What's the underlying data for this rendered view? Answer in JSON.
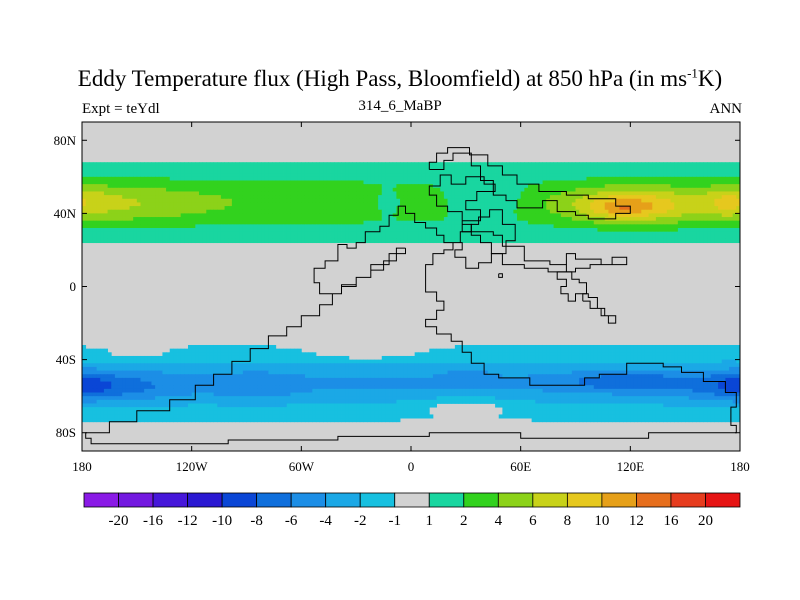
{
  "title": {
    "main": "Eddy Temperature flux (High Pass, Bloomfield) at 850 hPa (in ms",
    "sup": "-1",
    "suffix": "K)"
  },
  "left_label": "Expt = teYdl",
  "center_label": "314_6_MaBP",
  "right_label": "ANN",
  "chart_data": {
    "type": "heatmap",
    "title": "Eddy Temperature flux (High Pass, Bloomfield) at 850 hPa (in ms-1K)",
    "projection": "cylindrical equidistant",
    "xlim": [
      -180,
      180
    ],
    "ylim": [
      -90,
      90
    ],
    "x_ticks": [
      {
        "value": -180,
        "label": "180"
      },
      {
        "value": -120,
        "label": "120W"
      },
      {
        "value": -60,
        "label": "60W"
      },
      {
        "value": 0,
        "label": "0"
      },
      {
        "value": 60,
        "label": "60E"
      },
      {
        "value": 120,
        "label": "120E"
      },
      {
        "value": 180,
        "label": "180"
      }
    ],
    "y_ticks": [
      {
        "value": 80,
        "label": "80N"
      },
      {
        "value": 40,
        "label": "40N"
      },
      {
        "value": 0,
        "label": "0"
      },
      {
        "value": -40,
        "label": "40S"
      },
      {
        "value": -80,
        "label": "80S"
      }
    ],
    "colorbar": {
      "labels": [
        "-20",
        "-16",
        "-12",
        "-10",
        "-8",
        "-6",
        "-4",
        "-2",
        "-1",
        "1",
        "2",
        "4",
        "6",
        "8",
        "10",
        "12",
        "16",
        "20"
      ],
      "colors": [
        "#8a1ae6",
        "#7319e0",
        "#4617da",
        "#2a18d2",
        "#0a46d6",
        "#0f6fdc",
        "#1c8ee6",
        "#1ba8e6",
        "#17c0e0",
        "#d2d2d2",
        "#19d6a0",
        "#32d21e",
        "#8cd219",
        "#c8d219",
        "#e6c81e",
        "#e6a019",
        "#e66e1c",
        "#e63c1e",
        "#e61414"
      ]
    },
    "missing_color": "#d2d2d2",
    "band_color_index": {
      "-1": 9,
      "0": 9,
      "1": 10,
      "2": 11,
      "3": 12,
      "4": 13,
      "5": 14,
      "6": 15,
      "7": 16,
      "-2": 8,
      "-3": 7,
      "-4": 6,
      "-5": 5,
      "-6": 4,
      "-7": 3
    },
    "features": [
      {
        "lon": -157,
        "lat": 45,
        "dlon": 45,
        "dlat": 11,
        "amp": 1.2
      },
      {
        "lon": -178,
        "lat": 47,
        "dlon": 18,
        "dlat": 9,
        "amp": 0.8
      },
      {
        "lon": 122,
        "lat": 44,
        "dlon": 35,
        "dlat": 10,
        "amp": 3.0
      },
      {
        "lon": 115,
        "lat": 43,
        "dlon": 15,
        "dlat": 5,
        "amp": 1.4
      },
      {
        "lon": 40,
        "lat": 47,
        "dlon": 25,
        "dlat": 10,
        "amp": -1.6
      },
      {
        "lon": -13,
        "lat": 46,
        "dlon": 12,
        "dlat": 8,
        "amp": -1.0
      },
      {
        "lon": 172,
        "lat": 46,
        "dlon": 10,
        "dlat": 8,
        "amp": 1.0
      },
      {
        "lon": -173,
        "lat": -55,
        "dlon": 40,
        "dlat": 8,
        "amp": -1.8
      },
      {
        "lon": 118,
        "lat": -52,
        "dlon": 32,
        "dlat": 5,
        "amp": -1.8
      },
      {
        "lon": 180,
        "lat": -54,
        "dlon": 14,
        "dlat": 7,
        "amp": -1.0
      },
      {
        "lon": 30,
        "lat": -49,
        "dlon": 12,
        "dlat": 4,
        "amp": -0.8
      },
      {
        "lon": -85,
        "lat": -55,
        "dlon": 20,
        "dlat": 8,
        "amp": -0.8
      },
      {
        "lon": 30,
        "lat": -65,
        "dlon": 30,
        "dlat": 5,
        "amp": 1.2
      },
      {
        "lon": -25,
        "lat": -37,
        "dlon": 30,
        "dlat": 4,
        "amp": 0.9
      },
      {
        "lon": -150,
        "lat": -38,
        "dlon": 20,
        "dlat": 4,
        "amp": 0.7
      }
    ],
    "land_outlines": [
      [
        [
          -3,
          21
        ],
        [
          -3,
          18
        ],
        [
          -8,
          18
        ],
        [
          -8,
          14
        ],
        [
          -15,
          14
        ],
        [
          -15,
          9
        ],
        [
          -22,
          9
        ],
        [
          -22,
          5
        ],
        [
          -30,
          5
        ],
        [
          -30,
          1
        ],
        [
          -38,
          1
        ],
        [
          -38,
          -4
        ],
        [
          -43,
          -4
        ],
        [
          -43,
          -10
        ],
        [
          -50,
          -10
        ],
        [
          -50,
          -16
        ],
        [
          -60,
          -16
        ],
        [
          -60,
          -22
        ],
        [
          -68,
          -22
        ],
        [
          -68,
          -27
        ],
        [
          -78,
          -27
        ],
        [
          -78,
          -34
        ],
        [
          -88,
          -34
        ],
        [
          -88,
          -41
        ],
        [
          -98,
          -41
        ],
        [
          -98,
          -48
        ],
        [
          -108,
          -48
        ],
        [
          -108,
          -54
        ],
        [
          -118,
          -54
        ],
        [
          -118,
          -62
        ],
        [
          -132,
          -62
        ],
        [
          -132,
          -68
        ],
        [
          -150,
          -68
        ],
        [
          -150,
          -74
        ],
        [
          -165,
          -74
        ],
        [
          -165,
          -80
        ],
        [
          -178,
          -80
        ],
        [
          -178,
          -83
        ],
        [
          -175,
          -83
        ],
        [
          -175,
          -86
        ],
        [
          -100,
          -86
        ],
        [
          -100,
          -84
        ],
        [
          -40,
          -84
        ],
        [
          -40,
          -82
        ],
        [
          10,
          -82
        ],
        [
          10,
          -80
        ],
        [
          60,
          -80
        ],
        [
          60,
          -83
        ],
        [
          130,
          -83
        ],
        [
          130,
          -80
        ],
        [
          178,
          -80
        ],
        [
          178,
          -76
        ],
        [
          175,
          -76
        ],
        [
          175,
          -66
        ],
        [
          178,
          -66
        ],
        [
          178,
          -58
        ],
        [
          172,
          -58
        ],
        [
          172,
          -52
        ],
        [
          160,
          -52
        ],
        [
          160,
          -47
        ],
        [
          148,
          -47
        ],
        [
          148,
          -44
        ],
        [
          138,
          -44
        ],
        [
          138,
          -42
        ],
        [
          118,
          -42
        ],
        [
          118,
          -48
        ],
        [
          103,
          -48
        ],
        [
          103,
          -50
        ],
        [
          95,
          -50
        ],
        [
          95,
          -54
        ],
        [
          65,
          -54
        ],
        [
          65,
          -50
        ],
        [
          48,
          -50
        ],
        [
          48,
          -48
        ],
        [
          40,
          -48
        ],
        [
          40,
          -42
        ],
        [
          33,
          -42
        ],
        [
          33,
          -36
        ],
        [
          28,
          -36
        ],
        [
          28,
          -30
        ],
        [
          22,
          -30
        ],
        [
          22,
          -26
        ],
        [
          14,
          -26
        ],
        [
          14,
          -22
        ],
        [
          8,
          -22
        ],
        [
          8,
          -18
        ],
        [
          14,
          -18
        ],
        [
          14,
          -13
        ],
        [
          18,
          -13
        ],
        [
          18,
          -8
        ],
        [
          14,
          -8
        ],
        [
          14,
          -3
        ],
        [
          8,
          -3
        ],
        [
          8,
          12
        ],
        [
          12,
          12
        ],
        [
          12,
          18
        ],
        [
          18,
          18
        ],
        [
          18,
          20
        ],
        [
          23,
          20
        ],
        [
          23,
          24
        ],
        [
          27,
          24
        ],
        [
          27,
          30
        ],
        [
          33,
          30
        ],
        [
          33,
          34
        ],
        [
          37,
          34
        ],
        [
          37,
          38
        ],
        [
          43,
          38
        ],
        [
          43,
          42
        ],
        [
          50,
          42
        ],
        [
          50,
          34
        ],
        [
          57,
          34
        ],
        [
          57,
          25
        ],
        [
          52,
          25
        ],
        [
          52,
          18
        ],
        [
          44,
          18
        ],
        [
          44,
          13
        ],
        [
          37,
          13
        ],
        [
          37,
          10
        ],
        [
          30,
          10
        ],
        [
          30,
          16
        ],
        [
          24,
          16
        ],
        [
          24,
          20
        ],
        [
          28,
          20
        ],
        [
          28,
          24
        ],
        [
          18,
          24
        ],
        [
          18,
          28
        ],
        [
          14,
          28
        ],
        [
          14,
          32
        ],
        [
          8,
          32
        ],
        [
          8,
          35
        ],
        [
          2,
          35
        ],
        [
          2,
          40
        ],
        [
          -3,
          40
        ],
        [
          -3,
          44
        ],
        [
          -7,
          44
        ],
        [
          -7,
          39
        ],
        [
          -12,
          39
        ],
        [
          -12,
          33
        ],
        [
          -17,
          33
        ],
        [
          -17,
          30
        ],
        [
          -25,
          30
        ],
        [
          -25,
          24
        ],
        [
          -30,
          24
        ],
        [
          -30,
          21
        ],
        [
          -35,
          21
        ],
        [
          -35,
          23
        ],
        [
          -40,
          23
        ],
        [
          -40,
          14
        ],
        [
          -47,
          14
        ],
        [
          -47,
          10
        ],
        [
          -53,
          10
        ],
        [
          -53,
          2
        ],
        [
          -50,
          2
        ],
        [
          -50,
          -4
        ],
        [
          -38,
          -4
        ],
        [
          -38,
          0
        ],
        [
          -30,
          0
        ],
        [
          -30,
          5
        ],
        [
          -22,
          5
        ],
        [
          -22,
          12
        ],
        [
          -12,
          12
        ],
        [
          -12,
          18
        ],
        [
          -8,
          18
        ],
        [
          -8,
          21
        ],
        [
          -3,
          21
        ]
      ],
      [
        [
          10,
          64
        ],
        [
          18,
          64
        ],
        [
          18,
          69
        ],
        [
          23,
          69
        ],
        [
          23,
          73
        ],
        [
          33,
          73
        ],
        [
          33,
          66
        ],
        [
          38,
          66
        ],
        [
          38,
          58
        ],
        [
          45,
          58
        ],
        [
          45,
          50
        ],
        [
          52,
          50
        ],
        [
          52,
          47
        ],
        [
          58,
          47
        ],
        [
          58,
          43
        ],
        [
          72,
          43
        ],
        [
          72,
          47
        ],
        [
          80,
          47
        ],
        [
          80,
          41
        ],
        [
          90,
          41
        ],
        [
          90,
          39
        ],
        [
          97,
          39
        ],
        [
          97,
          37
        ],
        [
          112,
          37
        ],
        [
          112,
          40
        ],
        [
          120,
          40
        ],
        [
          120,
          44
        ],
        [
          112,
          44
        ],
        [
          112,
          48
        ],
        [
          97,
          48
        ],
        [
          97,
          50
        ],
        [
          85,
          50
        ],
        [
          85,
          52
        ],
        [
          70,
          52
        ],
        [
          70,
          56
        ],
        [
          58,
          56
        ],
        [
          58,
          61
        ],
        [
          50,
          61
        ],
        [
          50,
          66
        ],
        [
          42,
          66
        ],
        [
          42,
          72
        ],
        [
          32,
          72
        ],
        [
          32,
          76
        ],
        [
          20,
          76
        ],
        [
          20,
          73
        ],
        [
          14,
          73
        ],
        [
          14,
          68
        ],
        [
          10,
          68
        ],
        [
          10,
          64
        ]
      ],
      [
        [
          28,
          36
        ],
        [
          28,
          41
        ],
        [
          20,
          41
        ],
        [
          20,
          44
        ],
        [
          14,
          44
        ],
        [
          14,
          50
        ],
        [
          10,
          50
        ],
        [
          10,
          55
        ],
        [
          16,
          55
        ],
        [
          16,
          61
        ],
        [
          22,
          61
        ],
        [
          22,
          56
        ],
        [
          30,
          56
        ],
        [
          30,
          60
        ],
        [
          40,
          60
        ],
        [
          40,
          56
        ],
        [
          46,
          56
        ],
        [
          46,
          52
        ],
        [
          36,
          52
        ],
        [
          36,
          47
        ],
        [
          30,
          47
        ],
        [
          30,
          42
        ],
        [
          38,
          42
        ],
        [
          38,
          36
        ],
        [
          28,
          36
        ]
      ],
      [
        [
          28,
          36
        ],
        [
          28,
          30
        ],
        [
          45,
          30
        ],
        [
          45,
          28
        ],
        [
          50,
          28
        ],
        [
          50,
          22
        ],
        [
          62,
          22
        ],
        [
          62,
          14
        ],
        [
          76,
          14
        ],
        [
          76,
          12
        ],
        [
          85,
          12
        ],
        [
          85,
          18
        ],
        [
          90,
          18
        ],
        [
          90,
          15
        ],
        [
          104,
          15
        ],
        [
          104,
          12
        ],
        [
          110,
          12
        ],
        [
          110,
          16
        ],
        [
          118,
          16
        ],
        [
          118,
          12
        ],
        [
          98,
          12
        ],
        [
          98,
          10
        ],
        [
          90,
          10
        ],
        [
          90,
          8
        ],
        [
          75,
          8
        ],
        [
          75,
          10
        ],
        [
          62,
          10
        ],
        [
          62,
          12
        ],
        [
          50,
          12
        ],
        [
          50,
          18
        ],
        [
          44,
          18
        ],
        [
          44,
          24
        ],
        [
          38,
          24
        ],
        [
          38,
          28
        ],
        [
          33,
          28
        ],
        [
          33,
          34
        ],
        [
          28,
          34
        ],
        [
          28,
          36
        ]
      ],
      [
        [
          85,
          12
        ],
        [
          85,
          8
        ],
        [
          88,
          8
        ],
        [
          88,
          4
        ],
        [
          92,
          4
        ],
        [
          92,
          2
        ],
        [
          96,
          2
        ],
        [
          96,
          -4
        ],
        [
          90,
          -4
        ],
        [
          90,
          -8
        ],
        [
          86,
          -8
        ],
        [
          86,
          -4
        ],
        [
          82,
          -4
        ],
        [
          82,
          0
        ],
        [
          85,
          0
        ],
        [
          85,
          4
        ],
        [
          80,
          4
        ],
        [
          80,
          8
        ],
        [
          85,
          8
        ]
      ],
      [
        [
          94,
          -8
        ],
        [
          98,
          -8
        ],
        [
          98,
          -12
        ],
        [
          104,
          -12
        ],
        [
          104,
          -16
        ],
        [
          108,
          -16
        ],
        [
          108,
          -20
        ],
        [
          112,
          -20
        ],
        [
          112,
          -16
        ],
        [
          106,
          -16
        ],
        [
          106,
          -12
        ],
        [
          102,
          -12
        ],
        [
          102,
          -6
        ],
        [
          97,
          -6
        ],
        [
          97,
          -4
        ],
        [
          94,
          -4
        ],
        [
          94,
          -8
        ]
      ],
      [
        [
          48,
          7
        ],
        [
          50,
          7
        ],
        [
          50,
          5
        ],
        [
          48,
          5
        ],
        [
          48,
          7
        ]
      ]
    ]
  }
}
